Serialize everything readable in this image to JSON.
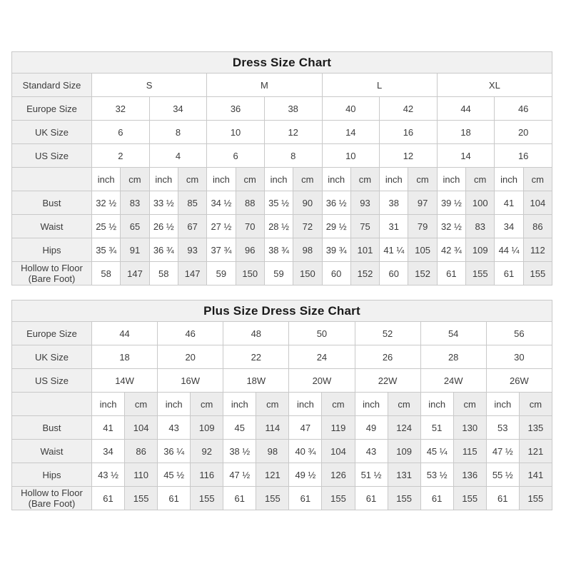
{
  "colors": {
    "border": "#c9c9c9",
    "label_bg": "#f0f0f0",
    "title_bg": "#f1f1f1",
    "cm_column_bg": "#ececec",
    "text": "#3c3c3c",
    "page_bg": "#ffffff"
  },
  "tables": [
    {
      "title": "Dress Size Chart",
      "header_row": {
        "label": "Standard Size",
        "groups": [
          "S",
          "M",
          "L",
          "XL"
        ]
      },
      "size_rows": [
        {
          "label": "Europe Size",
          "cells": [
            "32",
            "34",
            "36",
            "38",
            "40",
            "42",
            "44",
            "46"
          ]
        },
        {
          "label": "UK Size",
          "cells": [
            "6",
            "8",
            "10",
            "12",
            "14",
            "16",
            "18",
            "20"
          ]
        },
        {
          "label": "US Size",
          "cells": [
            "2",
            "4",
            "6",
            "8",
            "10",
            "12",
            "14",
            "16"
          ]
        }
      ],
      "unit_row": {
        "label": "",
        "cells": [
          "inch",
          "cm",
          "inch",
          "cm",
          "inch",
          "cm",
          "inch",
          "cm",
          "inch",
          "cm",
          "inch",
          "cm",
          "inch",
          "cm",
          "inch",
          "cm"
        ]
      },
      "measure_rows": [
        {
          "label": "Bust",
          "cells": [
            "32 ½",
            "83",
            "33 ½",
            "85",
            "34 ½",
            "88",
            "35 ½",
            "90",
            "36 ½",
            "93",
            "38",
            "97",
            "39 ½",
            "100",
            "41",
            "104"
          ]
        },
        {
          "label": "Waist",
          "cells": [
            "25 ½",
            "65",
            "26 ½",
            "67",
            "27 ½",
            "70",
            "28 ½",
            "72",
            "29 ½",
            "75",
            "31",
            "79",
            "32 ½",
            "83",
            "34",
            "86"
          ]
        },
        {
          "label": "Hips",
          "cells": [
            "35 ¾",
            "91",
            "36 ¾",
            "93",
            "37 ¾",
            "96",
            "38 ¾",
            "98",
            "39 ¾",
            "101",
            "41 ¼",
            "105",
            "42 ¾",
            "109",
            "44 ¼",
            "112"
          ]
        },
        {
          "label": "Hollow to Floor\n(Bare Foot)",
          "cells": [
            "58",
            "147",
            "58",
            "147",
            "59",
            "150",
            "59",
            "150",
            "60",
            "152",
            "60",
            "152",
            "61",
            "155",
            "61",
            "155"
          ]
        }
      ]
    },
    {
      "title": "Plus Size Dress Size Chart",
      "header_row": null,
      "size_rows": [
        {
          "label": "Europe Size",
          "cells": [
            "44",
            "46",
            "48",
            "50",
            "52",
            "54",
            "56"
          ]
        },
        {
          "label": "UK Size",
          "cells": [
            "18",
            "20",
            "22",
            "24",
            "26",
            "28",
            "30"
          ]
        },
        {
          "label": "US Size",
          "cells": [
            "14W",
            "16W",
            "18W",
            "20W",
            "22W",
            "24W",
            "26W"
          ]
        }
      ],
      "unit_row": {
        "label": "",
        "cells": [
          "inch",
          "cm",
          "inch",
          "cm",
          "inch",
          "cm",
          "inch",
          "cm",
          "inch",
          "cm",
          "inch",
          "cm",
          "inch",
          "cm"
        ]
      },
      "measure_rows": [
        {
          "label": "Bust",
          "cells": [
            "41",
            "104",
            "43",
            "109",
            "45",
            "114",
            "47",
            "119",
            "49",
            "124",
            "51",
            "130",
            "53",
            "135"
          ]
        },
        {
          "label": "Waist",
          "cells": [
            "34",
            "86",
            "36 ¼",
            "92",
            "38 ½",
            "98",
            "40 ¾",
            "104",
            "43",
            "109",
            "45 ¼",
            "115",
            "47 ½",
            "121"
          ]
        },
        {
          "label": "Hips",
          "cells": [
            "43 ½",
            "110",
            "45 ½",
            "116",
            "47 ½",
            "121",
            "49 ½",
            "126",
            "51 ½",
            "131",
            "53 ½",
            "136",
            "55 ½",
            "141"
          ]
        },
        {
          "label": "Hollow to Floor\n(Bare Foot)",
          "cells": [
            "61",
            "155",
            "61",
            "155",
            "61",
            "155",
            "61",
            "155",
            "61",
            "155",
            "61",
            "155",
            "61",
            "155"
          ]
        }
      ]
    }
  ]
}
